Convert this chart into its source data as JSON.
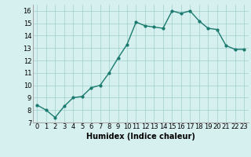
{
  "x": [
    0,
    1,
    2,
    3,
    4,
    5,
    6,
    7,
    8,
    9,
    10,
    11,
    12,
    13,
    14,
    15,
    16,
    17,
    18,
    19,
    20,
    21,
    22,
    23
  ],
  "y": [
    8.4,
    8.0,
    7.4,
    8.3,
    9.0,
    9.1,
    9.8,
    10.0,
    11.0,
    12.2,
    13.3,
    15.1,
    14.8,
    14.7,
    14.6,
    16.0,
    15.8,
    16.0,
    15.2,
    14.6,
    14.5,
    13.2,
    12.9,
    12.9
  ],
  "line_color": "#1a7a6e",
  "marker_color": "#1a7a6e",
  "bg_color": "#d6f0ef",
  "grid_color": "#a0cfcc",
  "xlabel": "Humidex (Indice chaleur)",
  "ylim": [
    7,
    16.5
  ],
  "xlim": [
    -0.5,
    23.5
  ],
  "yticks": [
    7,
    8,
    9,
    10,
    11,
    12,
    13,
    14,
    15,
    16
  ],
  "xticks": [
    0,
    1,
    2,
    3,
    4,
    5,
    6,
    7,
    8,
    9,
    10,
    11,
    12,
    13,
    14,
    15,
    16,
    17,
    18,
    19,
    20,
    21,
    22,
    23
  ],
  "xtick_labels": [
    "0",
    "1",
    "2",
    "3",
    "4",
    "5",
    "6",
    "7",
    "8",
    "9",
    "10",
    "11",
    "12",
    "13",
    "14",
    "15",
    "16",
    "17",
    "18",
    "19",
    "20",
    "21",
    "22",
    "23"
  ],
  "label_fontsize": 7,
  "tick_fontsize": 6,
  "linewidth": 1.0,
  "markersize": 2.0
}
